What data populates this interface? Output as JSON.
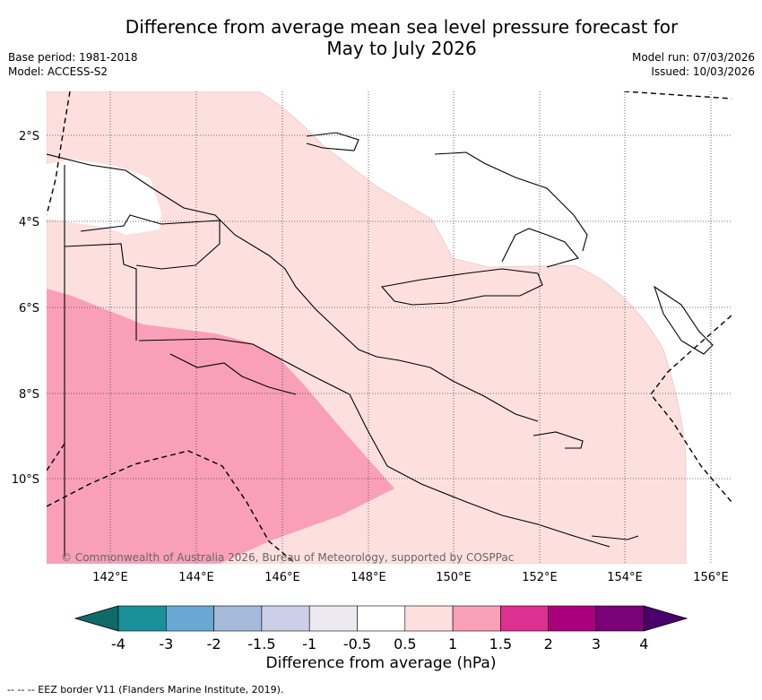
{
  "title_line1": "Difference from average mean sea level pressure forecast for",
  "title_line2": "May to July 2026",
  "base_period": "Base period: 1981-2018",
  "model": "Model: ACCESS-S2",
  "model_run": "Model run: 07/03/2026",
  "issued": "Issued: 10/03/2026",
  "map": {
    "lat_labels": [
      "2°S",
      "4°S",
      "6°S",
      "8°S",
      "10°S"
    ],
    "lon_labels": [
      "142°E",
      "144°E",
      "146°E",
      "148°E",
      "150°E",
      "152°E",
      "154°E",
      "156°E"
    ],
    "credit": "© Commonwealth of Australia 2026, Bureau of Meteorology, supported by COSPPac"
  },
  "colorbar": {
    "ticks": [
      "-4",
      "-3",
      "-2",
      "-1.5",
      "-1",
      "-0.5",
      "0.5",
      "1",
      "1.5",
      "2",
      "3",
      "4"
    ],
    "colors": [
      "#0e6b68",
      "#1a9199",
      "#69a8d3",
      "#a5b9db",
      "#cccfe8",
      "#eceaf0",
      "#ffffff",
      "#fde0de",
      "#f9a0b8",
      "#dd3192",
      "#ab007e",
      "#7a0177",
      "#49006a"
    ],
    "title": "Difference from average (hPa)"
  },
  "footnote": "-- -- -- EEZ border V11 (Flanders Marine Institute, 2019)."
}
